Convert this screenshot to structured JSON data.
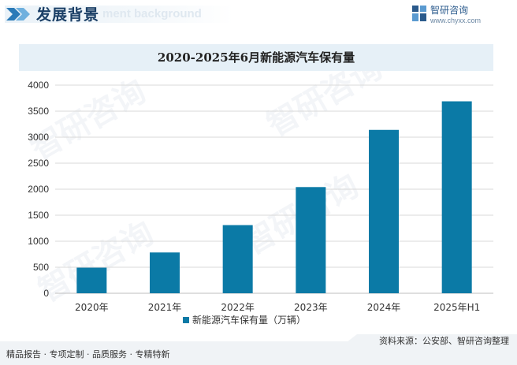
{
  "header": {
    "title": "发展背景",
    "subtitle": "ment background",
    "brand_name": "智研咨询",
    "brand_url": "www.chyxx.com"
  },
  "watermark": "智研咨询",
  "colors": {
    "bar": "#0b7aa6",
    "title_bg": "#e6f0f7",
    "grid": "#d9d9d9",
    "header_text": "#1b3f66"
  },
  "chart_data": {
    "type": "bar",
    "title": "2020-2025年6月新能源汽车保有量",
    "categories": [
      "2020年",
      "2021年",
      "2022年",
      "2023年",
      "2024年",
      "2025年H1"
    ],
    "series": [
      {
        "name": "新能源汽车保有量（万辆）",
        "values": [
          492,
          784,
          1310,
          2041,
          3140,
          3689
        ]
      }
    ],
    "ylim": [
      0,
      4000
    ],
    "yticks": [
      0,
      500,
      1000,
      1500,
      2000,
      2500,
      3000,
      3500,
      4000
    ],
    "grid": true,
    "legend": "bottom"
  },
  "footer": {
    "left": "精品报告 · 专项定制 · 品质服务 · 专精特新",
    "right": "资料来源：公安部、智研咨询整理"
  }
}
